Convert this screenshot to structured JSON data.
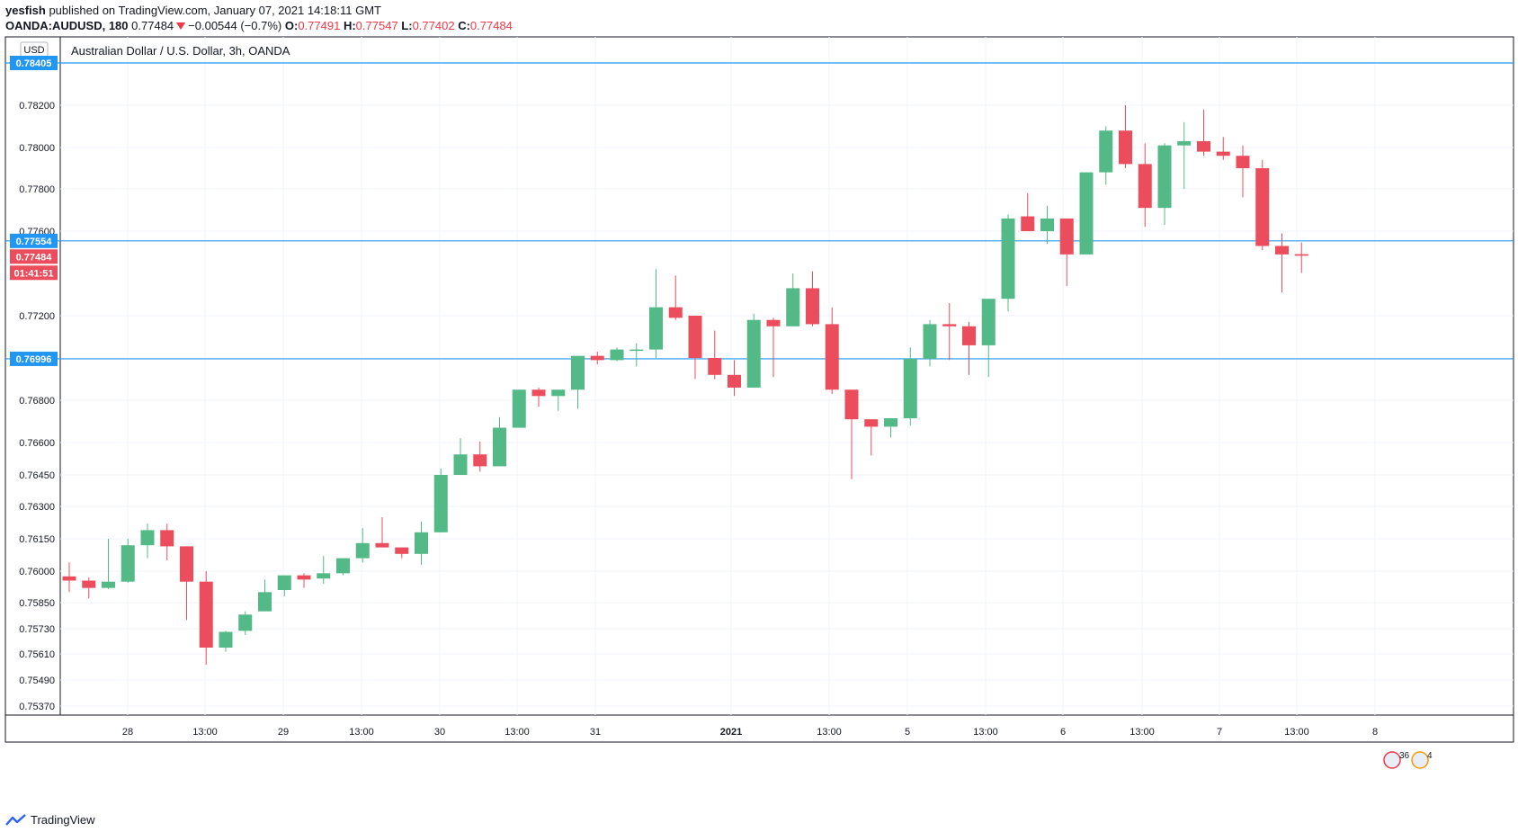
{
  "header": {
    "author": "yesfish",
    "published": "published on TradingView.com, January 07, 2021 14:18:11 GMT",
    "symbol": "OANDA:AUDUSD, 180",
    "last": "0.77484",
    "change": "−0.00544 (−0.7%)",
    "open_label": "O:",
    "open": "0.77491",
    "high_label": "H:",
    "high": "0.77547",
    "low_label": "L:",
    "low": "0.77402",
    "close_label": "C:",
    "close": "0.77484"
  },
  "footer": {
    "brand": "TradingView"
  },
  "chart_data": {
    "type": "candlestick",
    "title": "Australian Dollar / U.S. Dollar, 3h, OANDA",
    "currency": "USD",
    "colors": {
      "up": "#53b987",
      "down": "#eb4d5c",
      "hline": "#2196f3",
      "grid": "#f0f3fa"
    },
    "y_ticks": [
      "0.75370",
      "0.75490",
      "0.75610",
      "0.75730",
      "0.75850",
      "0.76000",
      "0.76150",
      "0.76300",
      "0.76450",
      "0.76600",
      "0.76800",
      "0.77200",
      "0.77600",
      "0.77800",
      "0.78000",
      "0.78200"
    ],
    "x_ticks": [
      "28",
      "13:00",
      "29",
      "13:00",
      "30",
      "13:00",
      "31",
      "2021",
      "13:00",
      "5",
      "13:00",
      "6",
      "13:00",
      "7",
      "13:00",
      "8"
    ],
    "horizontal_lines": [
      "0.78405",
      "0.77554",
      "0.76996"
    ],
    "last_price_label": "0.77484",
    "countdown_label": "01:41:51",
    "events": [
      {
        "label": "36"
      },
      {
        "label": "4"
      }
    ],
    "candles": [
      {
        "o": 0.75975,
        "h": 0.7604,
        "l": 0.759,
        "c": 0.75955
      },
      {
        "o": 0.75955,
        "h": 0.7597,
        "l": 0.7587,
        "c": 0.7592
      },
      {
        "o": 0.7592,
        "h": 0.7615,
        "l": 0.75915,
        "c": 0.7595
      },
      {
        "o": 0.7595,
        "h": 0.7615,
        "l": 0.75945,
        "c": 0.7612
      },
      {
        "o": 0.7612,
        "h": 0.7622,
        "l": 0.7606,
        "c": 0.7619
      },
      {
        "o": 0.7619,
        "h": 0.7622,
        "l": 0.7605,
        "c": 0.76115
      },
      {
        "o": 0.76115,
        "h": 0.76115,
        "l": 0.7577,
        "c": 0.7595
      },
      {
        "o": 0.7595,
        "h": 0.76,
        "l": 0.7556,
        "c": 0.7564
      },
      {
        "o": 0.7564,
        "h": 0.7572,
        "l": 0.7562,
        "c": 0.75715
      },
      {
        "o": 0.7572,
        "h": 0.7581,
        "l": 0.757,
        "c": 0.75795
      },
      {
        "o": 0.7581,
        "h": 0.7596,
        "l": 0.7581,
        "c": 0.759
      },
      {
        "o": 0.7591,
        "h": 0.7598,
        "l": 0.7588,
        "c": 0.7598
      },
      {
        "o": 0.7598,
        "h": 0.7599,
        "l": 0.7592,
        "c": 0.7596
      },
      {
        "o": 0.75965,
        "h": 0.7607,
        "l": 0.7594,
        "c": 0.7599
      },
      {
        "o": 0.7599,
        "h": 0.7606,
        "l": 0.7598,
        "c": 0.7606
      },
      {
        "o": 0.7606,
        "h": 0.762,
        "l": 0.7604,
        "c": 0.7613
      },
      {
        "o": 0.7613,
        "h": 0.7625,
        "l": 0.7611,
        "c": 0.7611
      },
      {
        "o": 0.7611,
        "h": 0.7611,
        "l": 0.7606,
        "c": 0.7608
      },
      {
        "o": 0.7608,
        "h": 0.7623,
        "l": 0.7603,
        "c": 0.7618
      },
      {
        "o": 0.7618,
        "h": 0.7648,
        "l": 0.7618,
        "c": 0.7645
      },
      {
        "o": 0.7645,
        "h": 0.7662,
        "l": 0.7645,
        "c": 0.76545
      },
      {
        "o": 0.76545,
        "h": 0.76605,
        "l": 0.76465,
        "c": 0.7649
      },
      {
        "o": 0.7649,
        "h": 0.7672,
        "l": 0.7649,
        "c": 0.7667
      },
      {
        "o": 0.7667,
        "h": 0.7684,
        "l": 0.7667,
        "c": 0.7685
      },
      {
        "o": 0.7685,
        "h": 0.7686,
        "l": 0.7677,
        "c": 0.7682
      },
      {
        "o": 0.7682,
        "h": 0.7685,
        "l": 0.7675,
        "c": 0.7685
      },
      {
        "o": 0.7685,
        "h": 0.77,
        "l": 0.7676,
        "c": 0.7701
      },
      {
        "o": 0.7701,
        "h": 0.7703,
        "l": 0.7697,
        "c": 0.7699
      },
      {
        "o": 0.7699,
        "h": 0.7705,
        "l": 0.76985,
        "c": 0.7704
      },
      {
        "o": 0.7704,
        "h": 0.7707,
        "l": 0.7696,
        "c": 0.7704
      },
      {
        "o": 0.7704,
        "h": 0.7742,
        "l": 0.77,
        "c": 0.7724
      },
      {
        "o": 0.7724,
        "h": 0.7739,
        "l": 0.7718,
        "c": 0.7719
      },
      {
        "o": 0.772,
        "h": 0.772,
        "l": 0.769,
        "c": 0.77
      },
      {
        "o": 0.77,
        "h": 0.7713,
        "l": 0.769,
        "c": 0.7692
      },
      {
        "o": 0.7692,
        "h": 0.7699,
        "l": 0.7682,
        "c": 0.7686
      },
      {
        "o": 0.7686,
        "h": 0.7721,
        "l": 0.7686,
        "c": 0.7718
      },
      {
        "o": 0.7718,
        "h": 0.7719,
        "l": 0.7691,
        "c": 0.7715
      },
      {
        "o": 0.7715,
        "h": 0.774,
        "l": 0.7715,
        "c": 0.7733
      },
      {
        "o": 0.7733,
        "h": 0.7741,
        "l": 0.7715,
        "c": 0.7716
      },
      {
        "o": 0.7716,
        "h": 0.7724,
        "l": 0.7683,
        "c": 0.7685
      },
      {
        "o": 0.7685,
        "h": 0.7685,
        "l": 0.7643,
        "c": 0.7671
      },
      {
        "o": 0.7671,
        "h": 0.7671,
        "l": 0.7654,
        "c": 0.76675
      },
      {
        "o": 0.76675,
        "h": 0.7671,
        "l": 0.76625,
        "c": 0.76715
      },
      {
        "o": 0.76715,
        "h": 0.7705,
        "l": 0.7668,
        "c": 0.76996
      },
      {
        "o": 0.76996,
        "h": 0.7718,
        "l": 0.7696,
        "c": 0.7716
      },
      {
        "o": 0.7716,
        "h": 0.7726,
        "l": 0.7699,
        "c": 0.7715
      },
      {
        "o": 0.7715,
        "h": 0.7717,
        "l": 0.7692,
        "c": 0.7706
      },
      {
        "o": 0.7706,
        "h": 0.7728,
        "l": 0.7691,
        "c": 0.7728
      },
      {
        "o": 0.7728,
        "h": 0.7768,
        "l": 0.7722,
        "c": 0.7766
      },
      {
        "o": 0.7767,
        "h": 0.7778,
        "l": 0.776,
        "c": 0.776
      },
      {
        "o": 0.776,
        "h": 0.7772,
        "l": 0.7754,
        "c": 0.7766
      },
      {
        "o": 0.7766,
        "h": 0.7766,
        "l": 0.7734,
        "c": 0.7749
      },
      {
        "o": 0.7749,
        "h": 0.7788,
        "l": 0.7749,
        "c": 0.7788
      },
      {
        "o": 0.7788,
        "h": 0.781,
        "l": 0.7782,
        "c": 0.7808
      },
      {
        "o": 0.7808,
        "h": 0.782,
        "l": 0.779,
        "c": 0.7792
      },
      {
        "o": 0.7792,
        "h": 0.7802,
        "l": 0.7762,
        "c": 0.7771
      },
      {
        "o": 0.7771,
        "h": 0.7802,
        "l": 0.7763,
        "c": 0.7801
      },
      {
        "o": 0.7801,
        "h": 0.7812,
        "l": 0.778,
        "c": 0.7803
      },
      {
        "o": 0.7803,
        "h": 0.7818,
        "l": 0.7796,
        "c": 0.7798
      },
      {
        "o": 0.7798,
        "h": 0.7805,
        "l": 0.7794,
        "c": 0.7796
      },
      {
        "o": 0.7796,
        "h": 0.7801,
        "l": 0.7776,
        "c": 0.779
      },
      {
        "o": 0.779,
        "h": 0.7794,
        "l": 0.7751,
        "c": 0.7753
      },
      {
        "o": 0.7753,
        "h": 0.7759,
        "l": 0.7731,
        "c": 0.7749
      },
      {
        "o": 0.77491,
        "h": 0.77547,
        "l": 0.77402,
        "c": 0.77484
      }
    ]
  }
}
